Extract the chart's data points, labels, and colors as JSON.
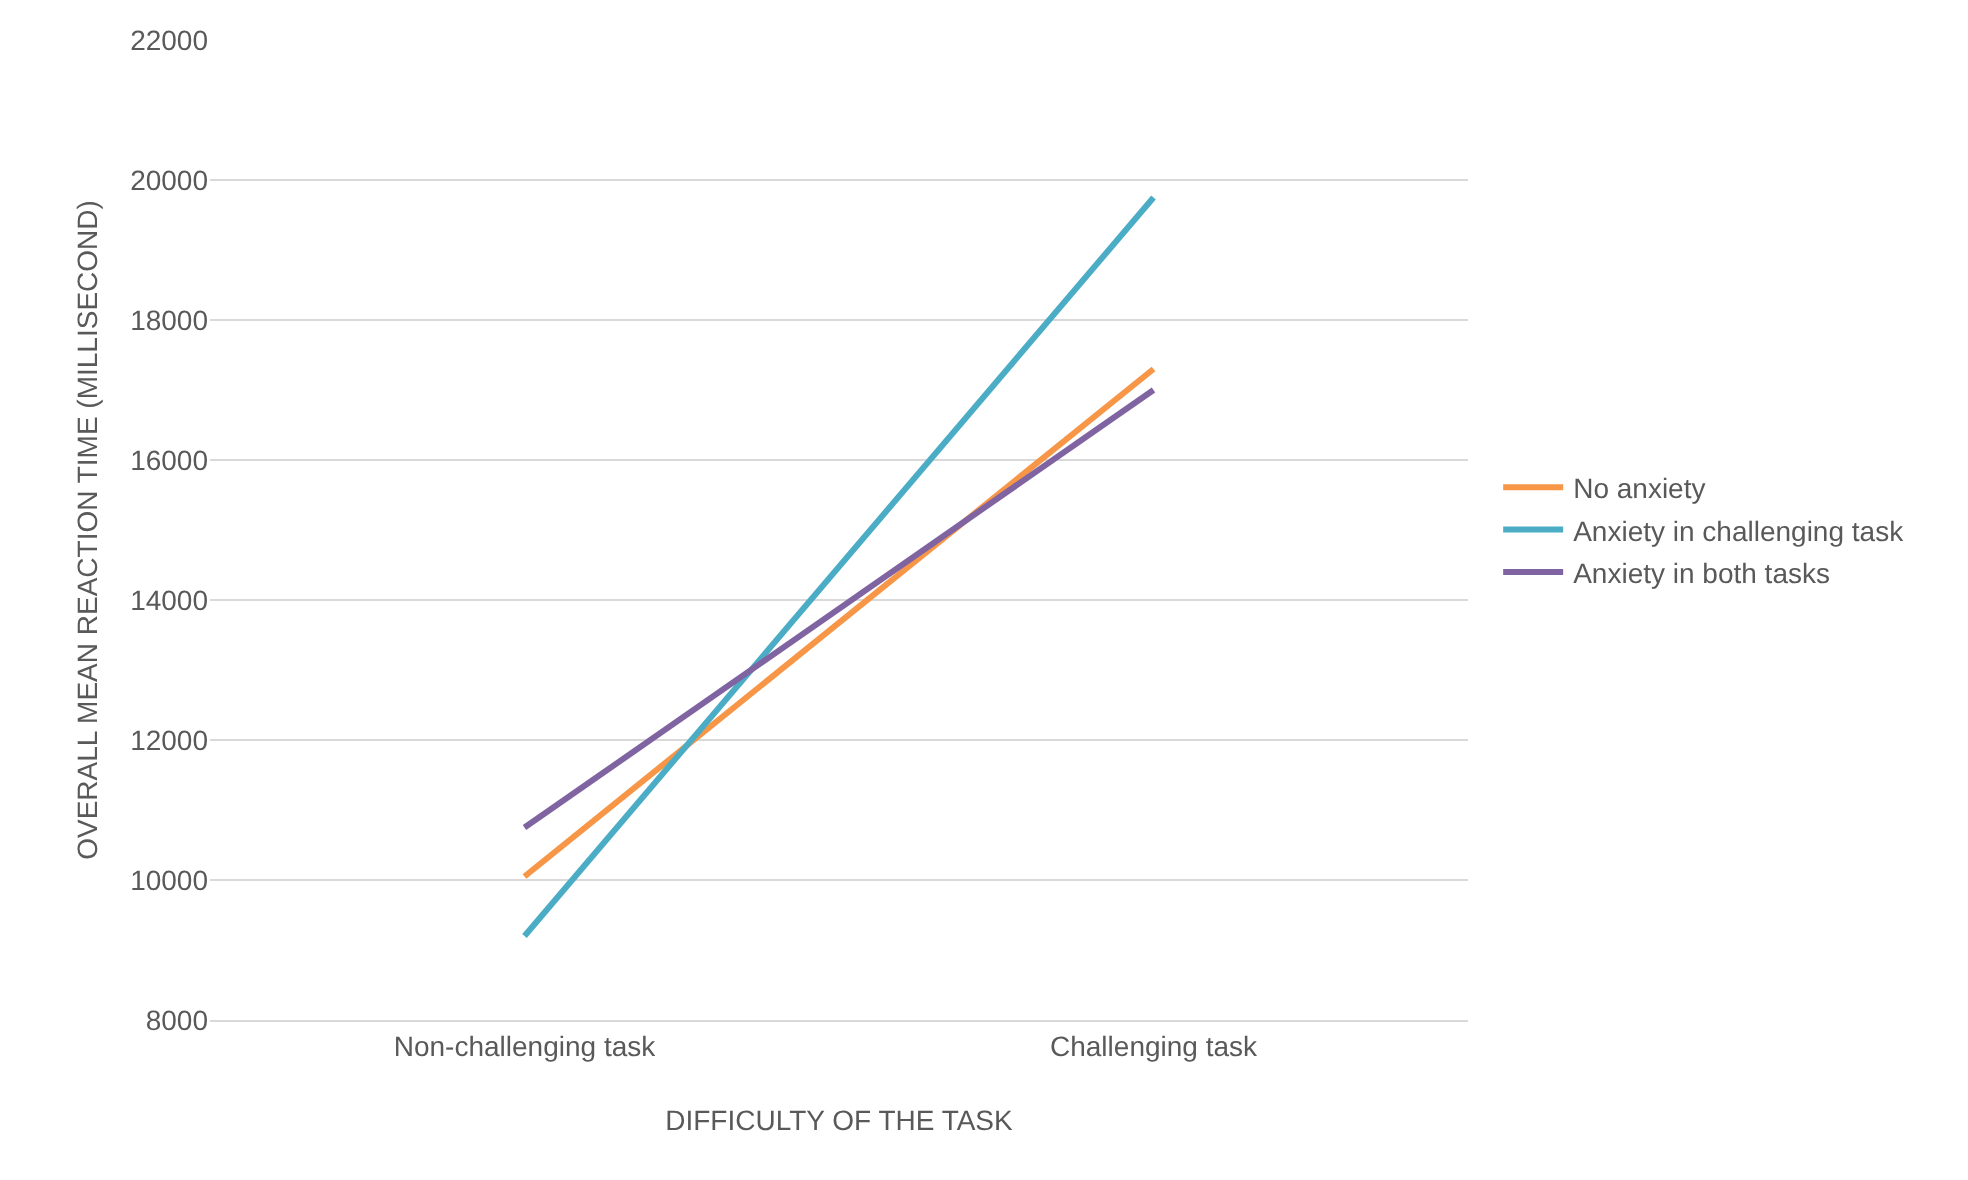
{
  "chart_data": {
    "type": "line",
    "xlabel": "DIFFICULTY OF THE TASK",
    "ylabel": "OVERALL MEAN REACTION TIME (MILLISECOND)",
    "categories": [
      "Non-challenging task",
      "Challenging task"
    ],
    "series": [
      {
        "name": "No anxiety",
        "color": "#f79646",
        "values": [
          10050,
          17300
        ]
      },
      {
        "name": "Anxiety in challenging task",
        "color": "#4bacc6",
        "values": [
          9200,
          19750
        ]
      },
      {
        "name": "Anxiety in both tasks",
        "color": "#8064a2",
        "values": [
          10750,
          17000
        ]
      }
    ],
    "ylim": [
      8000,
      22000
    ],
    "yticks": [
      8000,
      10000,
      12000,
      14000,
      16000,
      18000,
      20000,
      22000
    ],
    "grid": "y",
    "legend": "right",
    "marker": "none",
    "line_style": "solid"
  }
}
